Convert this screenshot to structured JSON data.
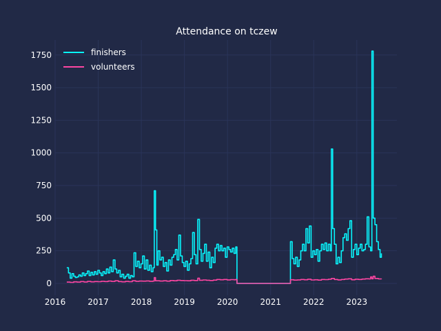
{
  "chart_data": {
    "type": "line",
    "title": "Attendance on tczew",
    "xlabel": "",
    "ylabel": "",
    "xlim": [
      2016.0,
      2023.93
    ],
    "ylim": [
      -90,
      1865
    ],
    "x_ticks": [
      2016,
      2017,
      2018,
      2019,
      2020,
      2021,
      2022,
      2023
    ],
    "y_ticks": [
      0,
      250,
      500,
      750,
      1000,
      1250,
      1500,
      1750
    ],
    "grid": true,
    "legend_position": "top-left",
    "background": "#212946",
    "series": [
      {
        "name": "finishers",
        "color": "#08F7FE",
        "points": [
          [
            2016.27,
            120
          ],
          [
            2016.31,
            80
          ],
          [
            2016.35,
            40
          ],
          [
            2016.39,
            75
          ],
          [
            2016.43,
            55
          ],
          [
            2016.47,
            45
          ],
          [
            2016.51,
            50
          ],
          [
            2016.55,
            65
          ],
          [
            2016.59,
            55
          ],
          [
            2016.63,
            80
          ],
          [
            2016.67,
            60
          ],
          [
            2016.71,
            75
          ],
          [
            2016.75,
            95
          ],
          [
            2016.79,
            60
          ],
          [
            2016.83,
            85
          ],
          [
            2016.87,
            65
          ],
          [
            2016.91,
            90
          ],
          [
            2016.95,
            70
          ],
          [
            2016.99,
            100
          ],
          [
            2017.03,
            80
          ],
          [
            2017.07,
            60
          ],
          [
            2017.11,
            90
          ],
          [
            2017.15,
            75
          ],
          [
            2017.19,
            110
          ],
          [
            2017.23,
            80
          ],
          [
            2017.27,
            125
          ],
          [
            2017.31,
            90
          ],
          [
            2017.35,
            180
          ],
          [
            2017.39,
            110
          ],
          [
            2017.43,
            80
          ],
          [
            2017.47,
            100
          ],
          [
            2017.51,
            50
          ],
          [
            2017.55,
            70
          ],
          [
            2017.59,
            40
          ],
          [
            2017.63,
            55
          ],
          [
            2017.67,
            70
          ],
          [
            2017.71,
            40
          ],
          [
            2017.75,
            60
          ],
          [
            2017.79,
            50
          ],
          [
            2017.83,
            235
          ],
          [
            2017.87,
            130
          ],
          [
            2017.91,
            170
          ],
          [
            2017.95,
            120
          ],
          [
            2017.99,
            150
          ],
          [
            2018.03,
            210
          ],
          [
            2018.07,
            110
          ],
          [
            2018.11,
            180
          ],
          [
            2018.15,
            100
          ],
          [
            2018.19,
            140
          ],
          [
            2018.23,
            90
          ],
          [
            2018.27,
            120
          ],
          [
            2018.3,
            710
          ],
          [
            2018.33,
            410
          ],
          [
            2018.36,
            140
          ],
          [
            2018.39,
            250
          ],
          [
            2018.43,
            180
          ],
          [
            2018.47,
            200
          ],
          [
            2018.51,
            130
          ],
          [
            2018.55,
            160
          ],
          [
            2018.59,
            95
          ],
          [
            2018.63,
            180
          ],
          [
            2018.67,
            140
          ],
          [
            2018.71,
            200
          ],
          [
            2018.75,
            220
          ],
          [
            2018.79,
            260
          ],
          [
            2018.83,
            180
          ],
          [
            2018.87,
            370
          ],
          [
            2018.91,
            210
          ],
          [
            2018.95,
            160
          ],
          [
            2018.99,
            130
          ],
          [
            2019.03,
            170
          ],
          [
            2019.07,
            100
          ],
          [
            2019.11,
            150
          ],
          [
            2019.15,
            190
          ],
          [
            2019.19,
            390
          ],
          [
            2019.23,
            220
          ],
          [
            2019.27,
            150
          ],
          [
            2019.31,
            490
          ],
          [
            2019.35,
            260
          ],
          [
            2019.39,
            170
          ],
          [
            2019.43,
            230
          ],
          [
            2019.47,
            300
          ],
          [
            2019.51,
            170
          ],
          [
            2019.55,
            240
          ],
          [
            2019.59,
            120
          ],
          [
            2019.63,
            200
          ],
          [
            2019.67,
            160
          ],
          [
            2019.71,
            270
          ],
          [
            2019.75,
            300
          ],
          [
            2019.79,
            250
          ],
          [
            2019.83,
            290
          ],
          [
            2019.87,
            250
          ],
          [
            2019.91,
            270
          ],
          [
            2019.95,
            200
          ],
          [
            2019.99,
            280
          ],
          [
            2020.03,
            260
          ],
          [
            2020.07,
            240
          ],
          [
            2020.11,
            270
          ],
          [
            2020.15,
            230
          ],
          [
            2020.19,
            280
          ],
          [
            2020.22,
            0
          ],
          [
            2021.44,
            0
          ],
          [
            2021.46,
            320
          ],
          [
            2021.5,
            190
          ],
          [
            2021.54,
            150
          ],
          [
            2021.58,
            200
          ],
          [
            2021.62,
            130
          ],
          [
            2021.66,
            180
          ],
          [
            2021.7,
            250
          ],
          [
            2021.74,
            300
          ],
          [
            2021.78,
            250
          ],
          [
            2021.82,
            420
          ],
          [
            2021.86,
            310
          ],
          [
            2021.9,
            440
          ],
          [
            2021.94,
            200
          ],
          [
            2021.98,
            250
          ],
          [
            2022.02,
            220
          ],
          [
            2022.06,
            260
          ],
          [
            2022.1,
            170
          ],
          [
            2022.14,
            250
          ],
          [
            2022.18,
            300
          ],
          [
            2022.22,
            260
          ],
          [
            2022.26,
            310
          ],
          [
            2022.3,
            250
          ],
          [
            2022.34,
            300
          ],
          [
            2022.38,
            250
          ],
          [
            2022.41,
            1030
          ],
          [
            2022.44,
            420
          ],
          [
            2022.48,
            300
          ],
          [
            2022.52,
            150
          ],
          [
            2022.56,
            200
          ],
          [
            2022.6,
            160
          ],
          [
            2022.64,
            250
          ],
          [
            2022.68,
            350
          ],
          [
            2022.72,
            380
          ],
          [
            2022.76,
            330
          ],
          [
            2022.8,
            420
          ],
          [
            2022.84,
            480
          ],
          [
            2022.88,
            200
          ],
          [
            2022.92,
            260
          ],
          [
            2022.96,
            300
          ],
          [
            2023.0,
            220
          ],
          [
            2023.04,
            270
          ],
          [
            2023.08,
            300
          ],
          [
            2023.12,
            250
          ],
          [
            2023.16,
            260
          ],
          [
            2023.2,
            300
          ],
          [
            2023.24,
            510
          ],
          [
            2023.28,
            280
          ],
          [
            2023.32,
            250
          ],
          [
            2023.35,
            1780
          ],
          [
            2023.38,
            500
          ],
          [
            2023.42,
            450
          ],
          [
            2023.46,
            320
          ],
          [
            2023.5,
            260
          ],
          [
            2023.54,
            200
          ],
          [
            2023.57,
            230
          ]
        ]
      },
      {
        "name": "volunteers",
        "color": "#FF46A3",
        "points": [
          [
            2016.27,
            10
          ],
          [
            2016.35,
            8
          ],
          [
            2016.43,
            12
          ],
          [
            2016.51,
            10
          ],
          [
            2016.59,
            14
          ],
          [
            2016.67,
            11
          ],
          [
            2016.75,
            15
          ],
          [
            2016.83,
            12
          ],
          [
            2016.91,
            14
          ],
          [
            2016.99,
            13
          ],
          [
            2017.07,
            16
          ],
          [
            2017.15,
            14
          ],
          [
            2017.23,
            18
          ],
          [
            2017.31,
            15
          ],
          [
            2017.39,
            20
          ],
          [
            2017.47,
            14
          ],
          [
            2017.55,
            12
          ],
          [
            2017.63,
            15
          ],
          [
            2017.71,
            13
          ],
          [
            2017.79,
            20
          ],
          [
            2017.87,
            16
          ],
          [
            2017.95,
            18
          ],
          [
            2018.03,
            17
          ],
          [
            2018.11,
            19
          ],
          [
            2018.19,
            16
          ],
          [
            2018.27,
            18
          ],
          [
            2018.3,
            45
          ],
          [
            2018.33,
            20
          ],
          [
            2018.43,
            18
          ],
          [
            2018.51,
            20
          ],
          [
            2018.59,
            17
          ],
          [
            2018.67,
            22
          ],
          [
            2018.75,
            20
          ],
          [
            2018.83,
            24
          ],
          [
            2018.91,
            22
          ],
          [
            2018.99,
            21
          ],
          [
            2019.07,
            20
          ],
          [
            2019.15,
            24
          ],
          [
            2019.23,
            22
          ],
          [
            2019.31,
            40
          ],
          [
            2019.35,
            24
          ],
          [
            2019.43,
            26
          ],
          [
            2019.51,
            24
          ],
          [
            2019.59,
            22
          ],
          [
            2019.67,
            25
          ],
          [
            2019.75,
            30
          ],
          [
            2019.83,
            28
          ],
          [
            2019.91,
            30
          ],
          [
            2019.99,
            27
          ],
          [
            2020.07,
            29
          ],
          [
            2020.15,
            28
          ],
          [
            2020.19,
            30
          ],
          [
            2020.22,
            0
          ],
          [
            2021.44,
            0
          ],
          [
            2021.46,
            28
          ],
          [
            2021.54,
            25
          ],
          [
            2021.62,
            27
          ],
          [
            2021.7,
            30
          ],
          [
            2021.78,
            28
          ],
          [
            2021.86,
            32
          ],
          [
            2021.94,
            26
          ],
          [
            2022.02,
            28
          ],
          [
            2022.1,
            25
          ],
          [
            2022.18,
            30
          ],
          [
            2022.26,
            29
          ],
          [
            2022.34,
            32
          ],
          [
            2022.41,
            38
          ],
          [
            2022.48,
            30
          ],
          [
            2022.56,
            27
          ],
          [
            2022.64,
            30
          ],
          [
            2022.72,
            33
          ],
          [
            2022.8,
            35
          ],
          [
            2022.88,
            28
          ],
          [
            2022.96,
            32
          ],
          [
            2023.04,
            30
          ],
          [
            2023.12,
            33
          ],
          [
            2023.2,
            35
          ],
          [
            2023.28,
            34
          ],
          [
            2023.32,
            50
          ],
          [
            2023.35,
            35
          ],
          [
            2023.38,
            55
          ],
          [
            2023.42,
            38
          ],
          [
            2023.5,
            34
          ],
          [
            2023.57,
            32
          ]
        ]
      }
    ]
  }
}
